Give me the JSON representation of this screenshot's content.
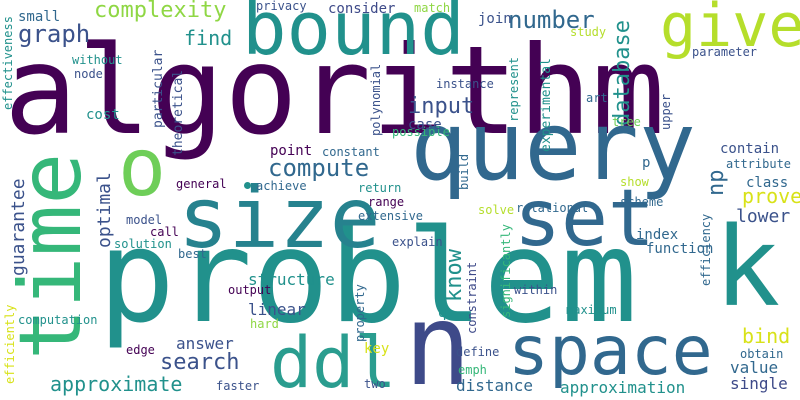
{
  "palette": {
    "deep_purple": "#440154",
    "indigo": "#3b528b",
    "blue_teal": "#31688e",
    "teal": "#21918c",
    "sea_green": "#2a9d8f",
    "green": "#35b779",
    "lime": "#8fd744",
    "yellow": "#d8e219",
    "bright_yellow": "#fde725"
  },
  "words": [
    {
      "text": "algorithm",
      "color": "#440154"
    },
    {
      "text": "problem",
      "color": "#21918c"
    },
    {
      "text": "query",
      "color": "#31688e"
    },
    {
      "text": "time",
      "color": "#35b779"
    },
    {
      "text": "size",
      "color": "#26828e"
    },
    {
      "text": "bound",
      "color": "#21918c"
    },
    {
      "text": "set",
      "color": "#31688e"
    },
    {
      "text": "space",
      "color": "#31688e"
    },
    {
      "text": "n",
      "color": "#3e4a89"
    },
    {
      "text": "k",
      "color": "#21918c"
    },
    {
      "text": "ddl",
      "color": "#2a9d8f"
    },
    {
      "text": "give",
      "color": "#b5de2b"
    },
    {
      "text": "o",
      "color": "#6ece58"
    },
    {
      "text": "complexity",
      "color": "#8fd744"
    },
    {
      "text": "number",
      "color": "#31688e"
    },
    {
      "text": "graph",
      "color": "#3b528b"
    },
    {
      "text": "find",
      "color": "#21918c"
    },
    {
      "text": "compute",
      "color": "#31688e"
    },
    {
      "text": "search",
      "color": "#3b528b"
    },
    {
      "text": "approximate",
      "color": "#21918c"
    },
    {
      "text": "input",
      "color": "#3b528b"
    },
    {
      "text": "database",
      "color": "#21918c"
    },
    {
      "text": "know",
      "color": "#21918c"
    },
    {
      "text": "guarantee",
      "color": "#3b528b"
    },
    {
      "text": "prove",
      "color": "#d8e219"
    },
    {
      "text": "lower",
      "color": "#3b528b"
    },
    {
      "text": "np",
      "color": "#31688e"
    },
    {
      "text": "optimal",
      "color": "#3b528b"
    },
    {
      "text": "bind",
      "color": "#d8e219"
    },
    {
      "text": "answer",
      "color": "#3b528b"
    },
    {
      "text": "distance",
      "color": "#31688e"
    },
    {
      "text": "approximation",
      "color": "#21918c"
    },
    {
      "text": "single",
      "color": "#3e4a89"
    },
    {
      "text": "value",
      "color": "#31688e"
    },
    {
      "text": "structure",
      "color": "#21918c"
    },
    {
      "text": "linear",
      "color": "#3b528b"
    },
    {
      "text": "point",
      "color": "#440154"
    },
    {
      "text": "small",
      "color": "#31688e"
    },
    {
      "text": "privacy",
      "color": "#3b528b"
    },
    {
      "text": "consider",
      "color": "#3e4a89"
    },
    {
      "text": "match",
      "color": "#8fd744"
    },
    {
      "text": "join",
      "color": "#3b528b"
    },
    {
      "text": "study",
      "color": "#b5de2b"
    },
    {
      "text": "parameter",
      "color": "#3b528b"
    },
    {
      "text": "node",
      "color": "#3b528b"
    },
    {
      "text": "without",
      "color": "#21918c"
    },
    {
      "text": "effectiveness",
      "color": "#21918c"
    },
    {
      "text": "cost",
      "color": "#21918c"
    },
    {
      "text": "particular",
      "color": "#3b528b"
    },
    {
      "text": "theoretical",
      "color": "#3b528b"
    },
    {
      "text": "instance",
      "color": "#3b528b"
    },
    {
      "text": "polynomial",
      "color": "#3b528b"
    },
    {
      "text": "represent",
      "color": "#21918c"
    },
    {
      "text": "experimental",
      "color": "#21918c"
    },
    {
      "text": "art",
      "color": "#31688e"
    },
    {
      "text": "tree",
      "color": "#6ece58"
    },
    {
      "text": "upper",
      "color": "#3b528b"
    },
    {
      "text": "possible",
      "color": "#35b779"
    },
    {
      "text": "case",
      "color": "#3b528b"
    },
    {
      "text": "constant",
      "color": "#31688e"
    },
    {
      "text": "contain",
      "color": "#3b528b"
    },
    {
      "text": "attribute",
      "color": "#31688e"
    },
    {
      "text": "class",
      "color": "#31688e"
    },
    {
      "text": "p",
      "color": "#31688e"
    },
    {
      "text": "show",
      "color": "#b5de2b"
    },
    {
      "text": "scheme",
      "color": "#31688e"
    },
    {
      "text": "efficiency",
      "color": "#31688e"
    },
    {
      "text": "general",
      "color": "#440154"
    },
    {
      "text": "achieve",
      "color": "#31688e"
    },
    {
      "text": "return",
      "color": "#21918c"
    },
    {
      "text": "range",
      "color": "#440154"
    },
    {
      "text": "extensive",
      "color": "#31688e"
    },
    {
      "text": "build",
      "color": "#31688e"
    },
    {
      "text": "relational",
      "color": "#31688e"
    },
    {
      "text": "solve",
      "color": "#b5de2b"
    },
    {
      "text": "model",
      "color": "#3b528b"
    },
    {
      "text": "call",
      "color": "#440154"
    },
    {
      "text": "solution",
      "color": "#21918c"
    },
    {
      "text": "best",
      "color": "#31688e"
    },
    {
      "text": "explain",
      "color": "#3b528b"
    },
    {
      "text": "index",
      "color": "#31688e"
    },
    {
      "text": "function",
      "color": "#31688e"
    },
    {
      "text": "significantly",
      "color": "#35b779"
    },
    {
      "text": "efficiently",
      "color": "#d8e219"
    },
    {
      "text": "computation",
      "color": "#21918c"
    },
    {
      "text": "output",
      "color": "#440154"
    },
    {
      "text": "hard",
      "color": "#8fd744"
    },
    {
      "text": "property",
      "color": "#31688e"
    },
    {
      "text": "constraint",
      "color": "#3e4a89"
    },
    {
      "text": "within",
      "color": "#3b528b"
    },
    {
      "text": "q",
      "color": "#21918c"
    },
    {
      "text": "maximum",
      "color": "#21918c"
    },
    {
      "text": "edge",
      "color": "#440154"
    },
    {
      "text": "key",
      "color": "#d8e219"
    },
    {
      "text": "define",
      "color": "#3b528b"
    },
    {
      "text": "emph",
      "color": "#35b779"
    },
    {
      "text": "faster",
      "color": "#3b528b"
    },
    {
      "text": "two",
      "color": "#3b528b"
    },
    {
      "text": "obtain",
      "color": "#31688e"
    }
  ],
  "dot_color": "#21918c"
}
